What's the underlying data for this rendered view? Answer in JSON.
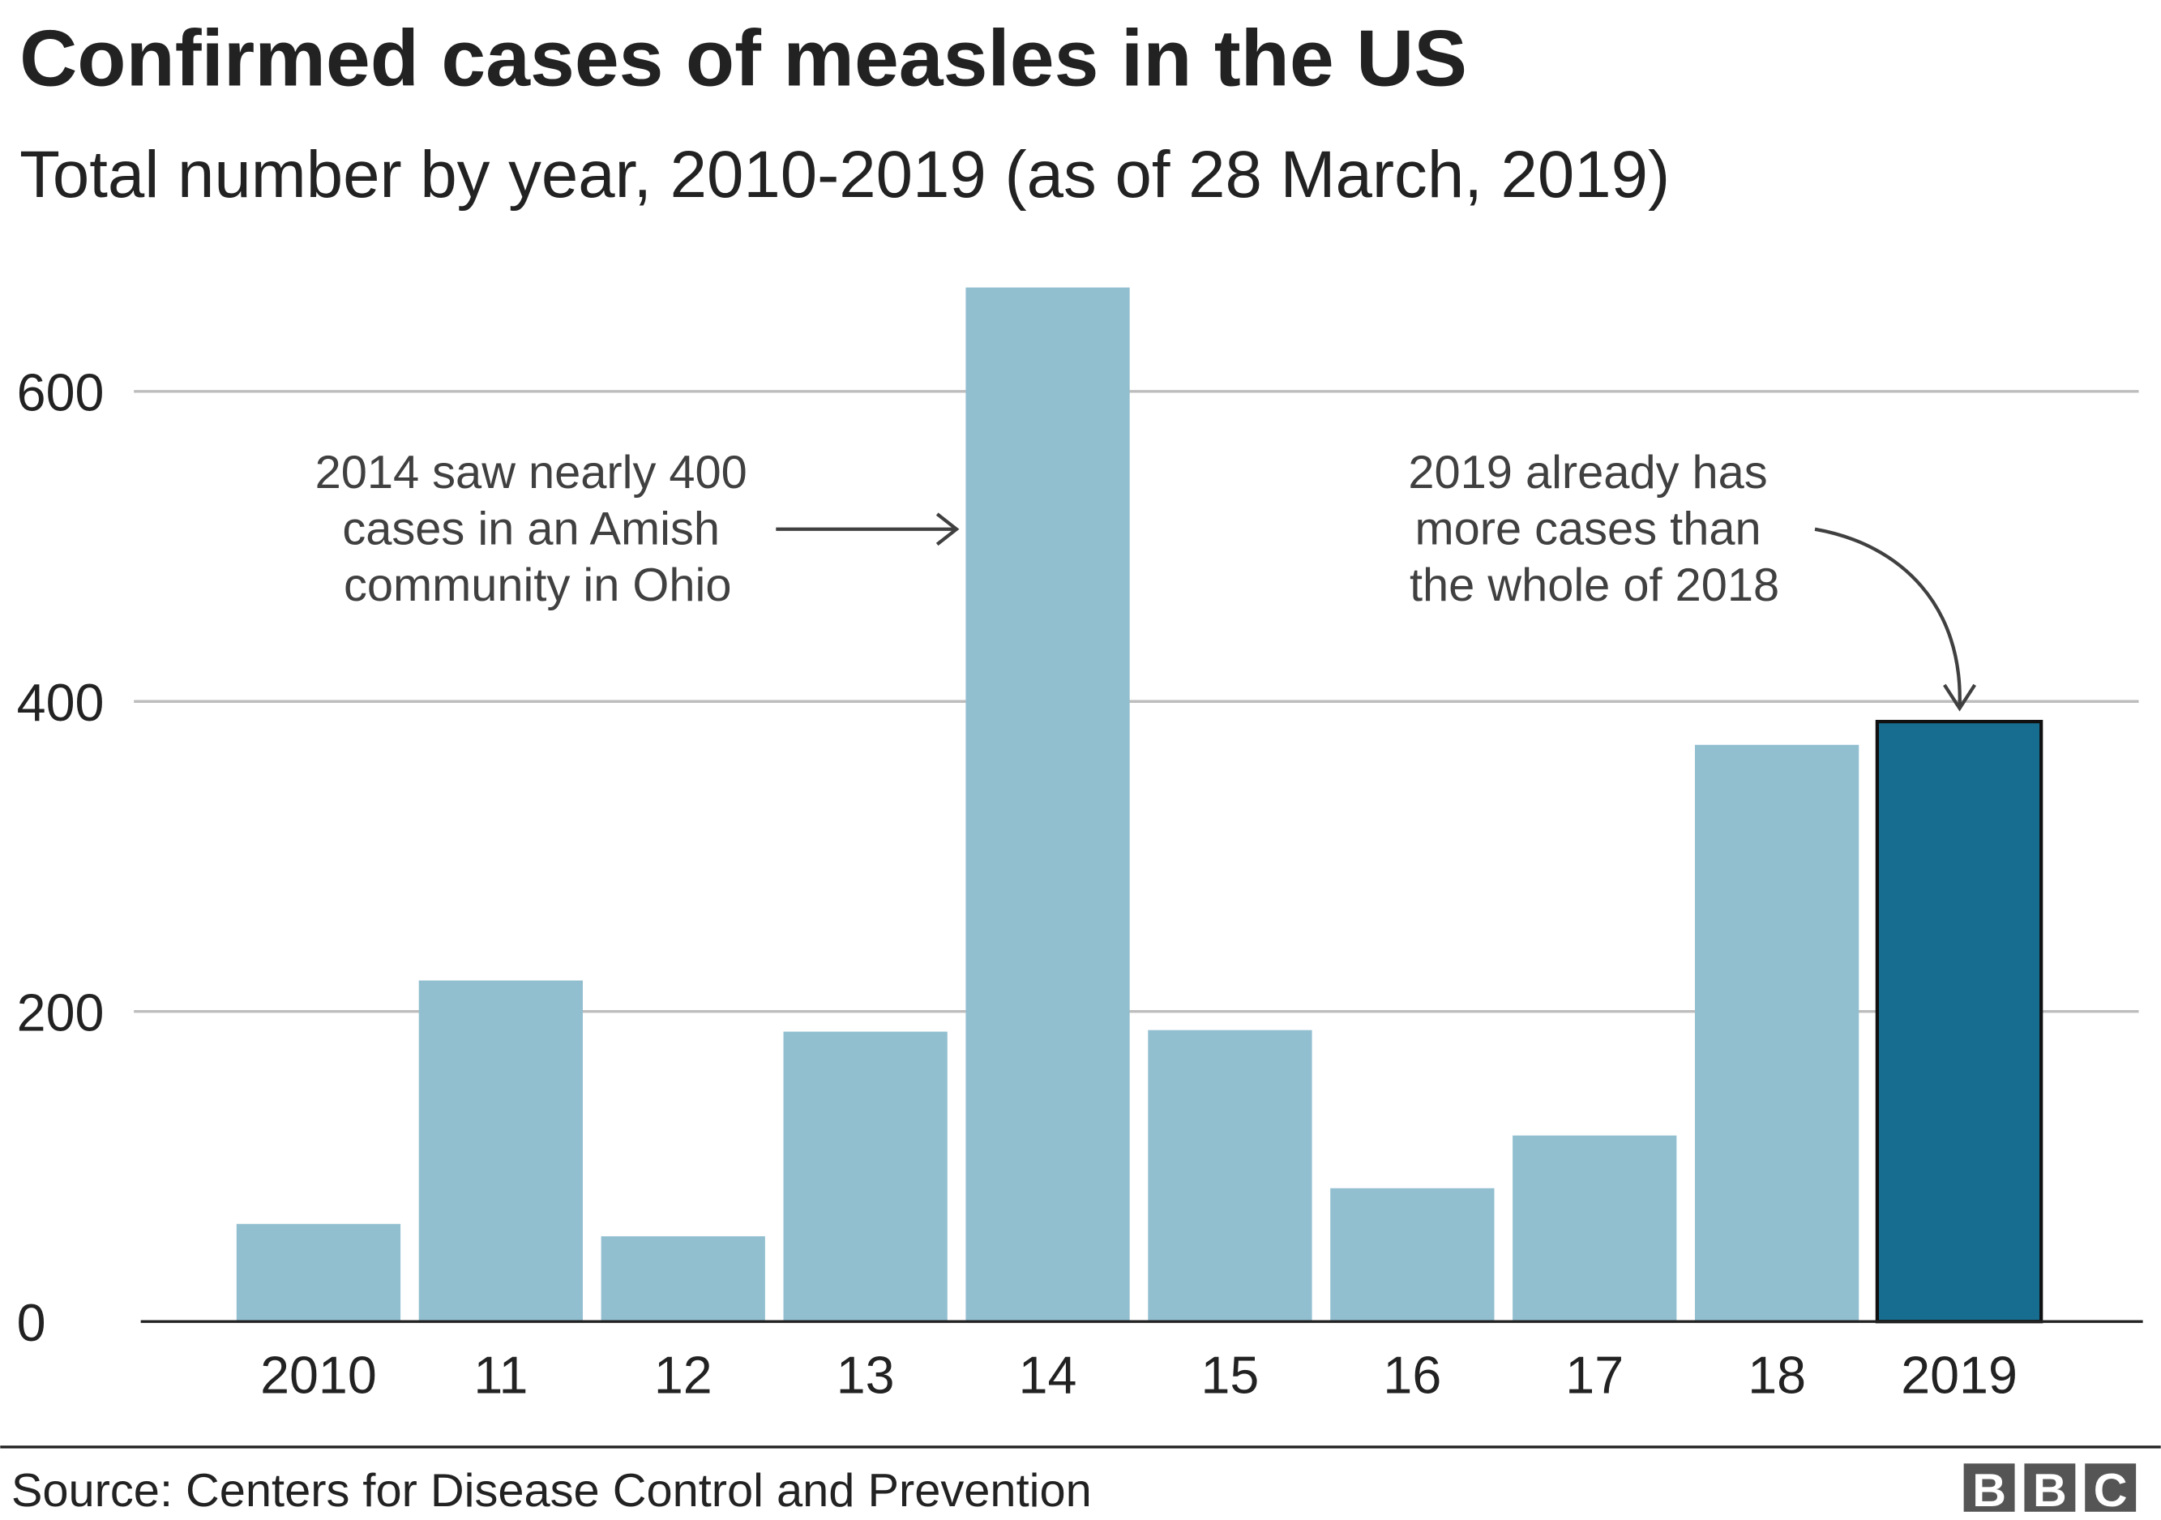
{
  "chart_data": {
    "type": "bar",
    "title": "Confirmed cases of measles in the US",
    "subtitle": "Total number by year, 2010-2019 (as of 28 March, 2019)",
    "categories": [
      "2010",
      "11",
      "12",
      "13",
      "14",
      "15",
      "16",
      "17",
      "18",
      "2019"
    ],
    "values": [
      63,
      220,
      55,
      187,
      667,
      188,
      86,
      120,
      372,
      387
    ],
    "highlight_index": 9,
    "ylim": [
      0,
      700
    ],
    "yticks": [
      0,
      200,
      400,
      600
    ],
    "ytick_labels": [
      "0",
      "200",
      "400",
      "600"
    ],
    "grid": true,
    "xlabel": "",
    "ylabel": "",
    "colors": {
      "bar": "#92bfd0",
      "highlight": "#176d8f",
      "grid": "#bdbdbd",
      "axis": "#222222"
    },
    "annotations": [
      {
        "lines": [
          "2014 saw nearly 400",
          "cases in an Amish",
          "community in Ohio"
        ],
        "target": "14"
      },
      {
        "lines": [
          "2019 already has",
          "more cases than",
          "the whole of 2018"
        ],
        "target": "2019"
      }
    ]
  },
  "footer": {
    "source": "Source: Centers for Disease Control and Prevention",
    "logo_text": "BBC"
  }
}
